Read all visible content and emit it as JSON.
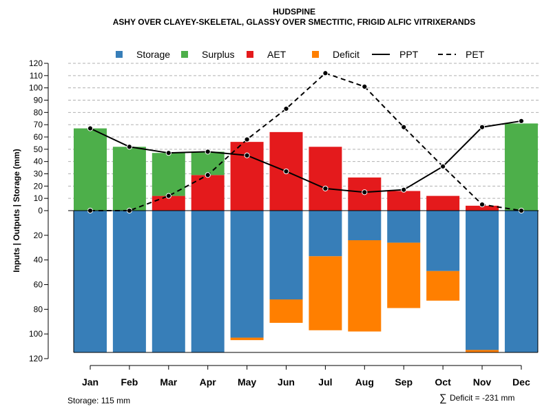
{
  "chart_data": {
    "type": "bar",
    "title": "HUDSPINE",
    "subtitle": "ASHY OVER CLAYEY-SKELETAL, GLASSY OVER SMECTITIC, FRIGID ALFIC VITRIXERANDS",
    "ylabel": "Inputs | Outputs | Storage    (mm)",
    "categories": [
      "Jan",
      "Feb",
      "Mar",
      "Apr",
      "May",
      "Jun",
      "Jul",
      "Aug",
      "Sep",
      "Oct",
      "Nov",
      "Dec"
    ],
    "upper_axis": {
      "range": [
        0,
        120
      ],
      "ticks": [
        "0",
        "10",
        "20",
        "30",
        "40",
        "50",
        "60",
        "70",
        "80",
        "90",
        "100",
        "110",
        "120"
      ]
    },
    "lower_axis": {
      "range": [
        0,
        120
      ],
      "ticks": [
        "20",
        "40",
        "60",
        "80",
        "100",
        "120"
      ]
    },
    "storage_capacity": 115,
    "series": [
      {
        "name": "Storage",
        "color": "#377EB8",
        "values": [
          115,
          115,
          115,
          115,
          103,
          72,
          37,
          24,
          26,
          49,
          113,
          115
        ]
      },
      {
        "name": "Surplus",
        "color": "#4DAF4A",
        "values": [
          67,
          52,
          35,
          19,
          0,
          0,
          0,
          0,
          0,
          0,
          0,
          71
        ]
      },
      {
        "name": "AET",
        "color": "#E41A1C",
        "values": [
          0,
          0,
          12,
          29,
          56,
          64,
          52,
          27,
          16,
          12,
          4,
          0
        ]
      },
      {
        "name": "Deficit",
        "color": "#FF7F00",
        "values": [
          0,
          0,
          0,
          0,
          2,
          19,
          60,
          74,
          53,
          24,
          2,
          0
        ]
      },
      {
        "name": "PPT",
        "color": "#000000",
        "style": "solid",
        "values": [
          67,
          52,
          47,
          48,
          45,
          32,
          18,
          15,
          17,
          36,
          68,
          73
        ]
      },
      {
        "name": "PET",
        "color": "#000000",
        "style": "dashed",
        "values": [
          0,
          0,
          12,
          29,
          58,
          83,
          112,
          101,
          68,
          36,
          5,
          0
        ]
      }
    ],
    "legend": [
      "Storage",
      "Surplus",
      "AET",
      "Deficit",
      "PPT",
      "PET"
    ],
    "legend_position": "top",
    "grid": true
  },
  "footer": {
    "storage_label": "Storage: 115 mm",
    "deficit_symbol": "∑",
    "deficit_label": "Deficit = -231 mm"
  }
}
